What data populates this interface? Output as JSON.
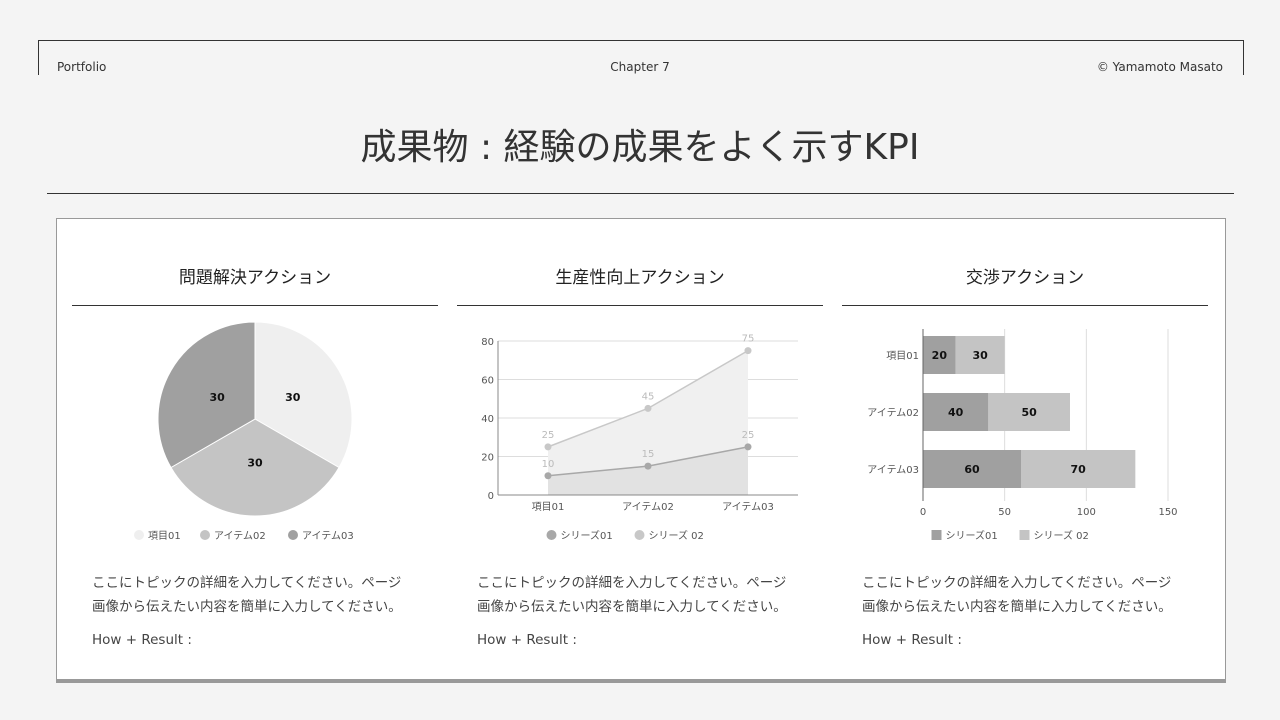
{
  "header": {
    "left": "Portfolio",
    "center": "Chapter 7",
    "right": "© Yamamoto Masato"
  },
  "title": "成果物 : 経験の成果をよく示すKPI",
  "columns": [
    {
      "title": "問題解決アクション",
      "desc1": "ここにトピックの詳細を入力してください。ページ",
      "desc2": "画像から伝えたい内容を簡単に入力してください。",
      "result": "How + Result :"
    },
    {
      "title": "生産性向上アクション",
      "desc1": "ここにトピックの詳細を入力してください。ページ",
      "desc2": "画像から伝えたい内容を簡単に入力してください。",
      "result": "How + Result :"
    },
    {
      "title": "交渉アクション",
      "desc1": "ここにトピックの詳細を入力してください。ページ",
      "desc2": "画像から伝えたい内容を簡単に入力してください。",
      "result": "How + Result :"
    }
  ],
  "chart_data": [
    {
      "type": "pie",
      "categories": [
        "項目01",
        "アイテム02",
        "アイテム03"
      ],
      "values": [
        30,
        30,
        30
      ],
      "colors": [
        "#efefef",
        "#c4c4c4",
        "#a0a0a0"
      ],
      "legend": "bottom"
    },
    {
      "type": "area",
      "categories": [
        "項目01",
        "アイテム02",
        "アイテム03"
      ],
      "series": [
        {
          "name": "シリーズ01",
          "values": [
            10,
            15,
            25
          ],
          "color": "#a8a8a8"
        },
        {
          "name": "シリーズ 02",
          "values": [
            25,
            45,
            75
          ],
          "color": "#c8c8c8"
        }
      ],
      "ylim": [
        0,
        80
      ],
      "yticks": [
        0,
        20,
        40,
        60,
        80
      ],
      "grid": true,
      "legend": "bottom"
    },
    {
      "type": "bar",
      "orientation": "horizontal",
      "stacked": true,
      "categories": [
        "項目01",
        "アイテム02",
        "アイテム03"
      ],
      "series": [
        {
          "name": "シリーズ01",
          "values": [
            20,
            40,
            60
          ],
          "color": "#a0a0a0"
        },
        {
          "name": "シリーズ 02",
          "values": [
            30,
            50,
            70
          ],
          "color": "#c4c4c4"
        }
      ],
      "xlim": [
        0,
        150
      ],
      "xticks": [
        0,
        50,
        100,
        150
      ],
      "grid": true,
      "legend": "bottom"
    }
  ]
}
